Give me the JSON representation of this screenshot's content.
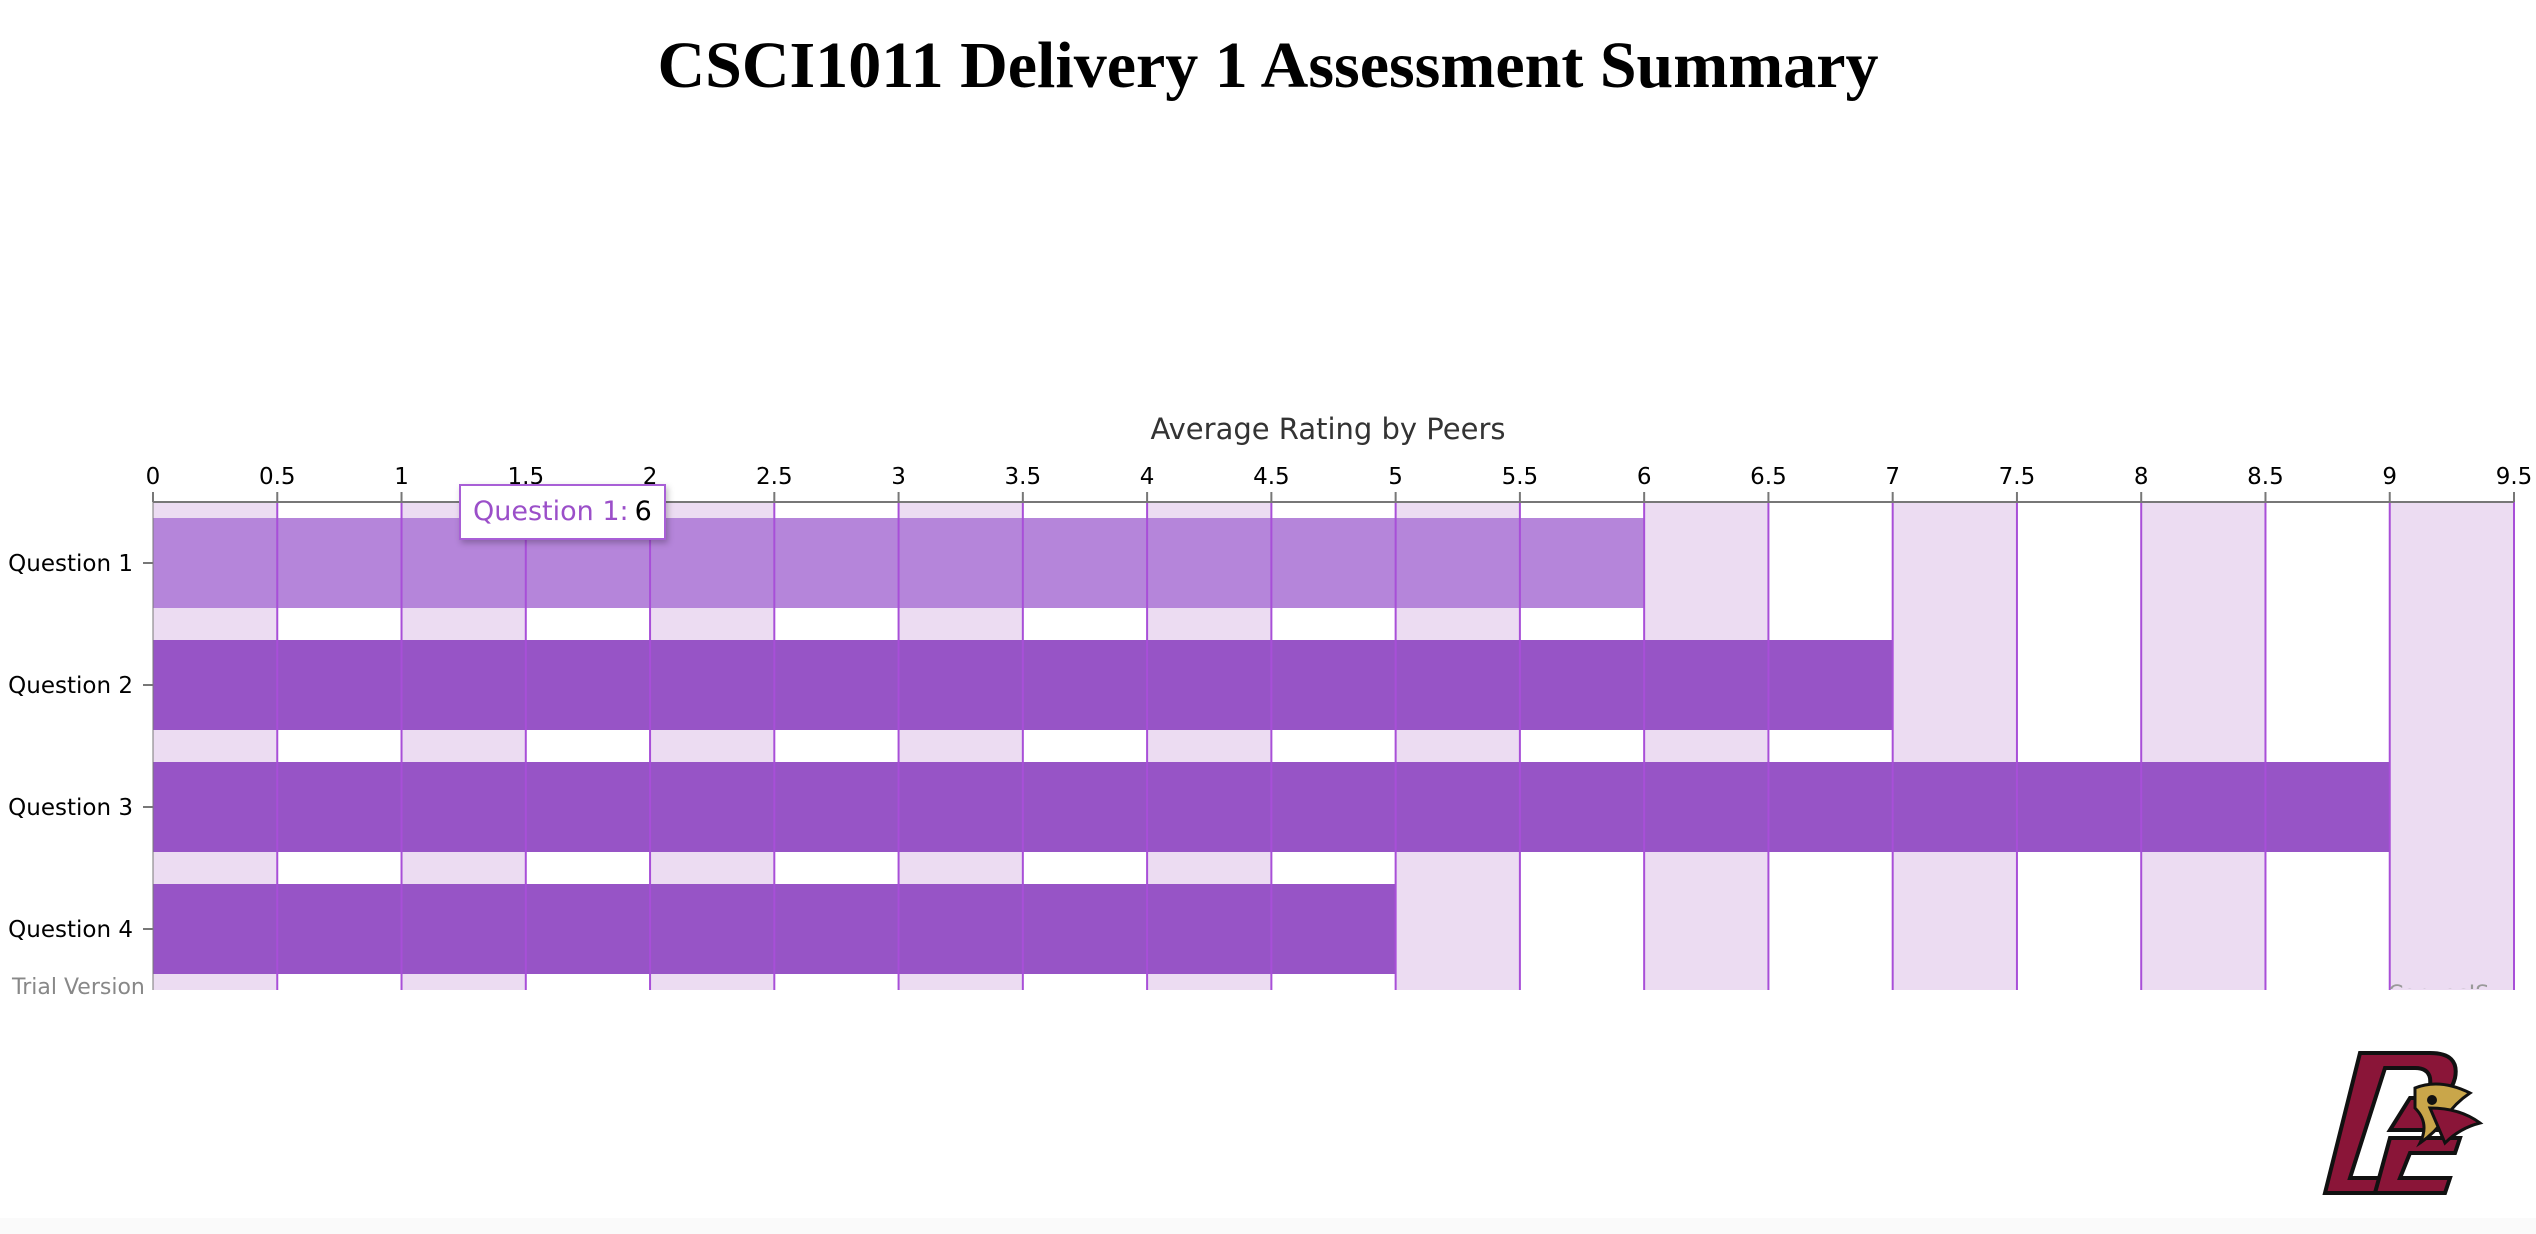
{
  "page": {
    "title": "CSCI1011 Delivery 1 Assessment Summary",
    "trial_text": "Trial Version",
    "credit_text": "CanvasJS"
  },
  "logo": {
    "name": "BC",
    "colors": {
      "maroon": "#8a1538",
      "gold": "#c9a64a"
    }
  },
  "tooltip": {
    "label": "Question 1:",
    "value": "6"
  },
  "colors": {
    "bar": "#9754c6",
    "bar_highlight": "#b585da",
    "stripe": "#ecdcf2",
    "grid": "#a84fd8",
    "axis": "#777777"
  },
  "chart_data": {
    "type": "bar",
    "orientation": "horizontal",
    "axis_title": "Average Rating by Peers",
    "categories": [
      "Question 1",
      "Question 2",
      "Question 3",
      "Question 4"
    ],
    "values": [
      6,
      7,
      9,
      5
    ],
    "xlim": [
      0,
      9.5
    ],
    "x_interval": 0.5,
    "x_ticks": [
      "0",
      "0.5",
      "1",
      "1.5",
      "2",
      "2.5",
      "3",
      "3.5",
      "4",
      "4.5",
      "5",
      "5.5",
      "6",
      "6.5",
      "7",
      "7.5",
      "8",
      "8.5",
      "9",
      "9.5"
    ],
    "grid": true,
    "interlaced_stripes": true,
    "axis_position": "top",
    "highlighted_category": "Question 1"
  }
}
